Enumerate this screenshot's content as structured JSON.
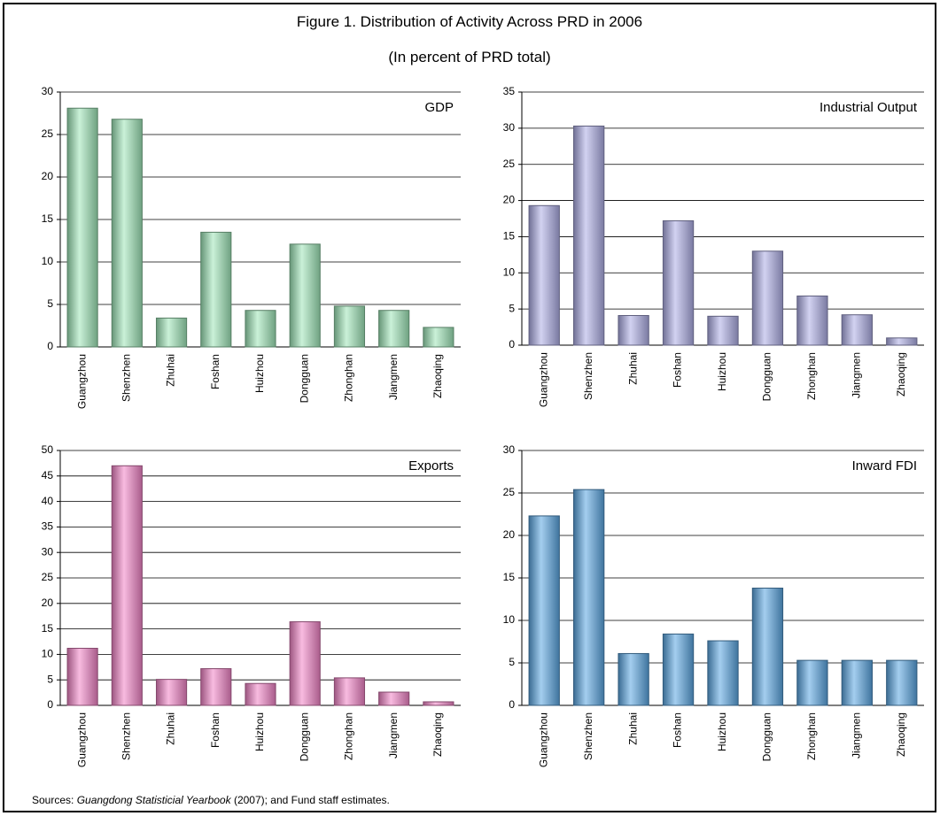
{
  "figure": {
    "title": "Figure 1. Distribution of Activity Across PRD in 2006",
    "subtitle": "(In percent of PRD total)",
    "source": [
      "Sources:",
      "Guangdong Statisticial Yearbook",
      "(2007); and Fund staff estimates."
    ]
  },
  "chart_data": [
    {
      "type": "bar",
      "title": "GDP",
      "categories": [
        "Guangzhou",
        "Shenzhen",
        "Zhuhai",
        "Foshan",
        "Huizhou",
        "Dongguan",
        "Zhonghan",
        "Jiangmen",
        "Zhaoqing"
      ],
      "values": [
        28.1,
        26.8,
        3.4,
        13.5,
        4.3,
        12.1,
        4.8,
        4.3,
        2.3
      ],
      "color": "#9ee6b8",
      "ylim": [
        0,
        30
      ],
      "yticks": [
        0,
        5,
        10,
        15,
        20,
        25,
        30
      ],
      "grid": true
    },
    {
      "type": "bar",
      "title": "Industrial Output",
      "categories": [
        "Guangzhou",
        "Shenzhen",
        "Zhuhai",
        "Foshan",
        "Huizhou",
        "Dongguan",
        "Zhonghan",
        "Jiangmen",
        "Zhaoqing"
      ],
      "values": [
        19.3,
        30.3,
        4.1,
        17.2,
        4.0,
        13.0,
        6.8,
        4.2,
        1.0
      ],
      "color": "#aeaee6",
      "ylim": [
        0,
        35
      ],
      "yticks": [
        0,
        5,
        10,
        15,
        20,
        25,
        30,
        35
      ],
      "grid": true
    },
    {
      "type": "bar",
      "title": "Exports",
      "categories": [
        "Guangzhou",
        "Shenzhen",
        "Zhuhai",
        "Foshan",
        "Huizhou",
        "Dongguan",
        "Zhonghan",
        "Jiangmen",
        "Zhaoqing"
      ],
      "values": [
        11.2,
        47.0,
        5.1,
        7.2,
        4.3,
        16.4,
        5.4,
        2.6,
        0.7
      ],
      "color": "#f284c6",
      "ylim": [
        0,
        50
      ],
      "yticks": [
        0,
        5,
        10,
        15,
        20,
        25,
        30,
        35,
        40,
        45,
        50
      ],
      "grid": true
    },
    {
      "type": "bar",
      "title": "Inward FDI",
      "categories": [
        "Guangzhou",
        "Shenzhen",
        "Zhuhai",
        "Foshan",
        "Huizhou",
        "Dongguan",
        "Zhonghan",
        "Jiangmen",
        "Zhaoqing"
      ],
      "values": [
        22.3,
        25.4,
        6.1,
        8.4,
        7.6,
        13.8,
        5.3,
        5.3,
        5.3
      ],
      "color": "#5aa6e2",
      "ylim": [
        0,
        30
      ],
      "yticks": [
        0,
        5,
        10,
        15,
        20,
        25,
        30
      ],
      "grid": true
    }
  ]
}
